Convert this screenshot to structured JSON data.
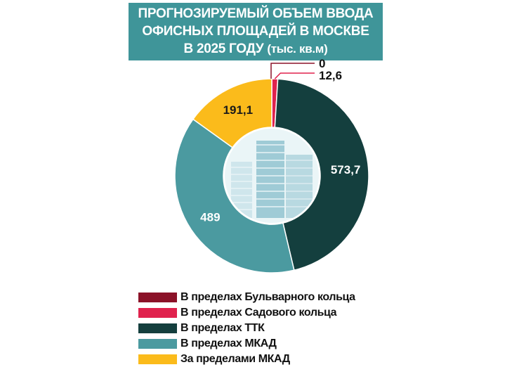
{
  "title": {
    "line1": "ПРОГНОЗИРУЕМЫЙ ОБЪЕМ ВВОДА",
    "line2": "ОФИСНЫХ ПЛОЩАДЕЙ В МОСКВЕ",
    "line3": "В 2025 ГОДУ",
    "unit": "(тыс. кв.м)"
  },
  "colors": {
    "title_bg": "#3f9599",
    "bulvar": "#8b1228",
    "sadovoe": "#e0224d",
    "ttk": "#143f3e",
    "mkad": "#4b9aa0",
    "outside": "#fbbb1b"
  },
  "chart_data": {
    "type": "pie",
    "variant": "donut",
    "title": "ПРОГНОЗИРУЕМЫЙ ОБЪЕМ ВВОДА ОФИСНЫХ ПЛОЩАДЕЙ В МОСКВЕ В 2025 ГОДУ (тыс. кв.м)",
    "center_image": "office-building-photo",
    "legend_position": "bottom-left",
    "slices": [
      {
        "label": "В пределах Бульварного кольца",
        "value": 0,
        "display": "0",
        "color": "#8b1228"
      },
      {
        "label": "В пределах Садового кольца",
        "value": 12.6,
        "display": "12,6",
        "color": "#e0224d"
      },
      {
        "label": "В пределах ТТК",
        "value": 573.7,
        "display": "573,7",
        "color": "#143f3e"
      },
      {
        "label": "В пределах МКАД",
        "value": 489,
        "display": "489",
        "color": "#4b9aa0"
      },
      {
        "label": "За пределами МКАД",
        "value": 191.1,
        "display": "191,1",
        "color": "#fbbb1b"
      }
    ]
  }
}
